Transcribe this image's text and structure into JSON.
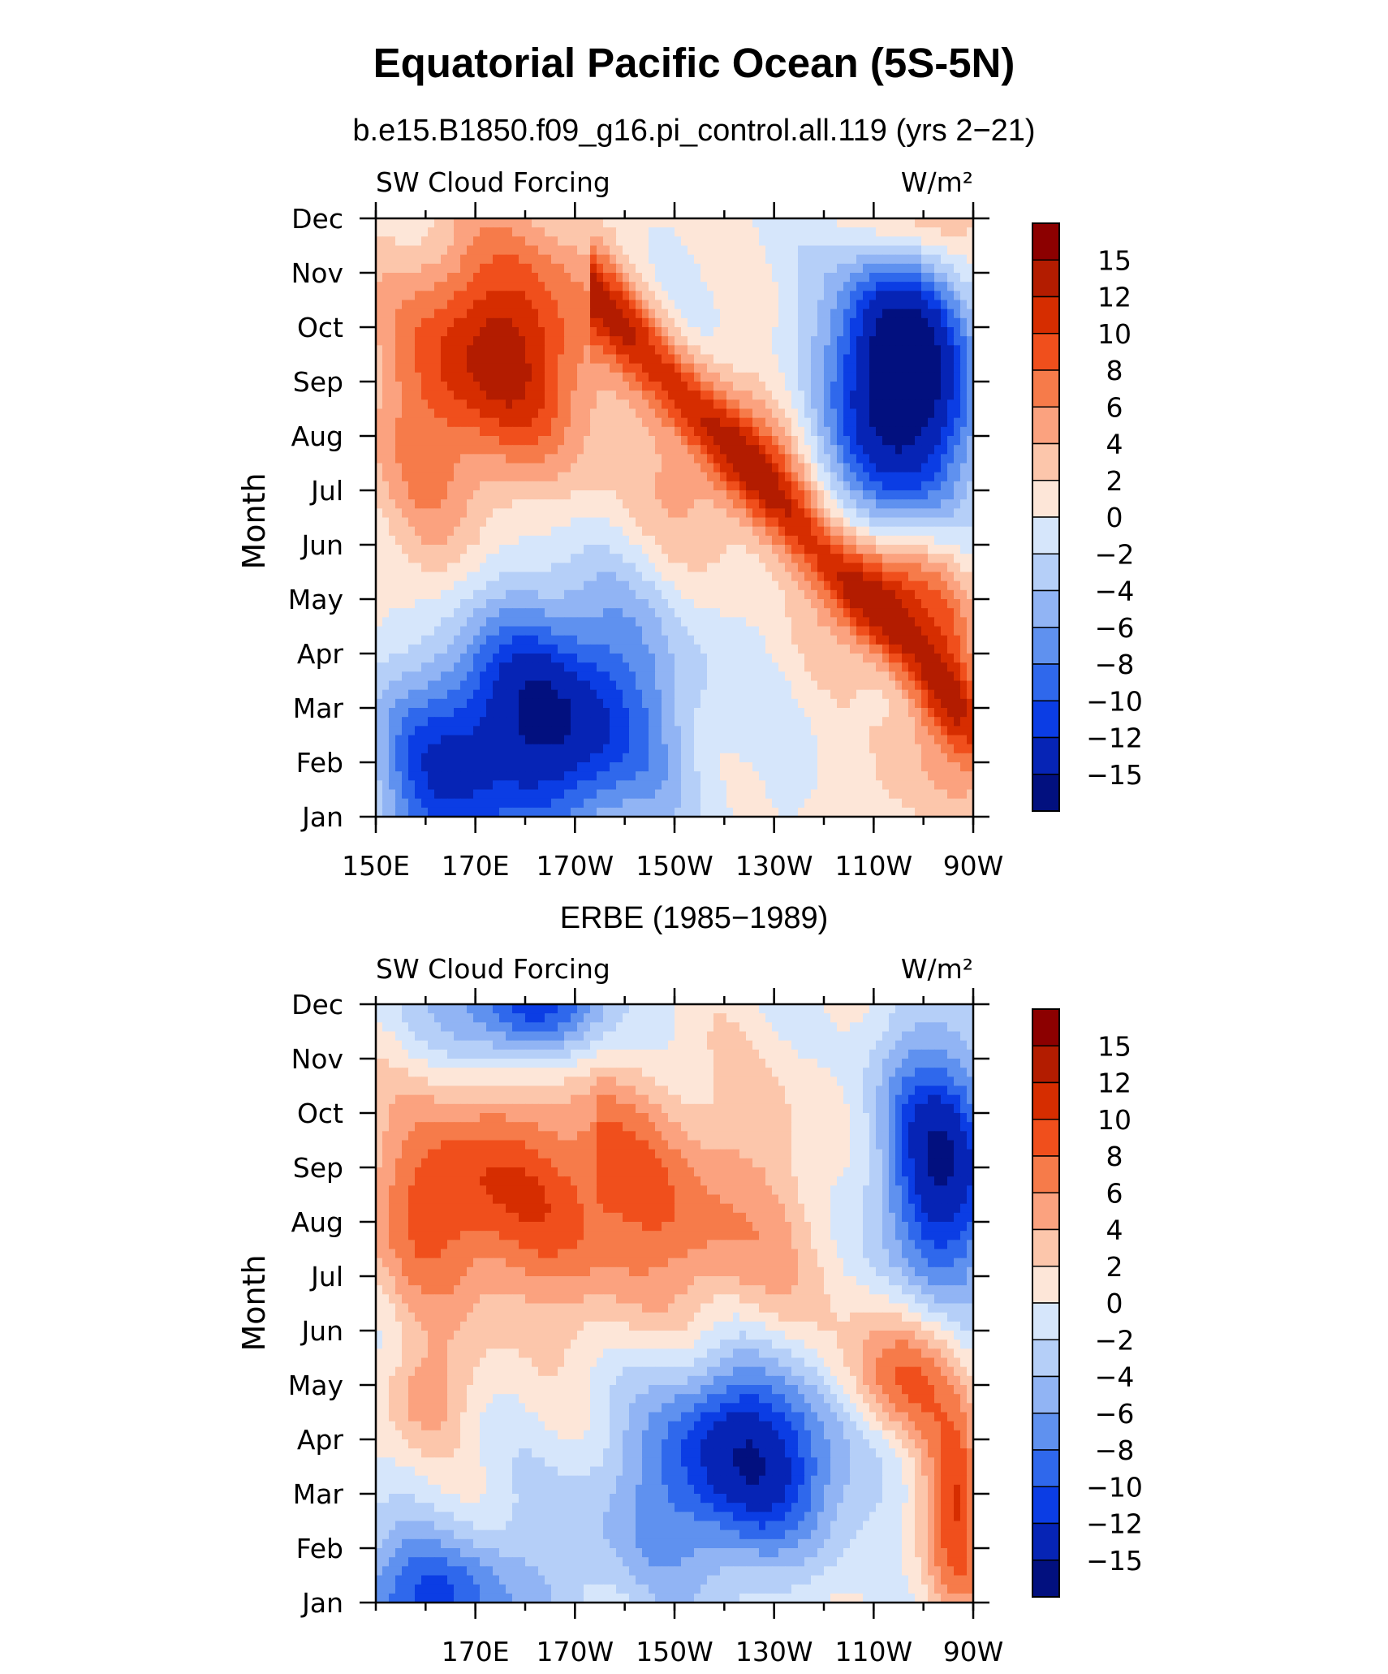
{
  "title": "Equatorial Pacific Ocean (5S-5N)",
  "chart_data": [
    {
      "type": "heatmap",
      "subtitle": "b.e15.B1850.f09_g16.pi_control.all.119 (yrs 2−21)",
      "left_label": "SW Cloud Forcing",
      "units": "W/m²",
      "ylabel": "Month",
      "months": [
        "Jan",
        "Feb",
        "Mar",
        "Apr",
        "May",
        "Jun",
        "Jul",
        "Aug",
        "Sep",
        "Oct",
        "Nov",
        "Dec"
      ],
      "x_tick_labels": [
        "150E",
        "170E",
        "170W",
        "150W",
        "130W",
        "110W",
        "90W"
      ],
      "x_tick_lon": [
        150,
        170,
        190,
        210,
        230,
        250,
        270
      ],
      "xlim_lon": [
        150,
        270
      ],
      "colorbar_levels": [
        "15",
        "12",
        "10",
        "8",
        "6",
        "4",
        "2",
        "0",
        "−2",
        "−4",
        "−6",
        "−8",
        "−10",
        "−12",
        "−15"
      ],
      "blobs": [
        {
          "lon": 177,
          "month": 9.6,
          "slon": 14,
          "smon": 1.6,
          "amp": 12
        },
        {
          "lon": 255,
          "month": 9.0,
          "slon": 10,
          "smon": 1.9,
          "amp": -20
        },
        {
          "lon": 253,
          "month": 5.2,
          "slon": 10,
          "smon": 0.9,
          "amp": 10
        },
        {
          "lon": 266,
          "month": 3.6,
          "slon": 5,
          "smon": 1.4,
          "amp": 5
        },
        {
          "lon": 186,
          "month": 2.8,
          "slon": 16,
          "smon": 1.6,
          "amp": -15
        },
        {
          "lon": 162,
          "month": 1.6,
          "slon": 10,
          "smon": 1.5,
          "amp": -8
        },
        {
          "lon": 222,
          "month": 7.4,
          "slon": 14,
          "smon": 1.2,
          "amp": 6
        },
        {
          "lon": 160,
          "month": 7.5,
          "slon": 10,
          "smon": 2.5,
          "amp": 4
        },
        {
          "lon": 255,
          "month": 1.2,
          "slon": 8,
          "smon": 1.5,
          "amp": 3
        },
        {
          "lon": 258,
          "month": 12.0,
          "slon": 10,
          "smon": 0.8,
          "amp": 8
        }
      ],
      "diag": {
        "lon0": 267,
        "m0": 3.0,
        "lon1": 205,
        "m1": 9.5,
        "amp": 8,
        "w": 0.6
      }
    },
    {
      "type": "heatmap",
      "subtitle": "ERBE (1985−1989)",
      "left_label": "SW Cloud Forcing",
      "units": "W/m²",
      "ylabel": "Month",
      "months": [
        "Jan",
        "Feb",
        "Mar",
        "Apr",
        "May",
        "Jun",
        "Jul",
        "Aug",
        "Sep",
        "Oct",
        "Nov",
        "Dec"
      ],
      "x_tick_labels": [
        "170E",
        "170W",
        "150W",
        "130W",
        "110W",
        "90W"
      ],
      "x_tick_lon": [
        170,
        190,
        210,
        230,
        250,
        270
      ],
      "xlim_lon": [
        150,
        270
      ],
      "colorbar_levels": [
        "15",
        "12",
        "10",
        "8",
        "6",
        "4",
        "2",
        "0",
        "−2",
        "−4",
        "−6",
        "−8",
        "−10",
        "−12",
        "−15"
      ],
      "blobs": [
        {
          "lon": 162,
          "month": 8.4,
          "slon": 10,
          "smon": 1.4,
          "amp": 8
        },
        {
          "lon": 185,
          "month": 8.6,
          "slon": 14,
          "smon": 1.6,
          "amp": 7
        },
        {
          "lon": 215,
          "month": 8.2,
          "slon": 20,
          "smon": 1.8,
          "amp": 5
        },
        {
          "lon": 160,
          "month": 4.8,
          "slon": 6,
          "smon": 0.7,
          "amp": 5
        },
        {
          "lon": 263,
          "month": 9.0,
          "slon": 9,
          "smon": 1.7,
          "amp": -15
        },
        {
          "lon": 225,
          "month": 3.8,
          "slon": 15,
          "smon": 1.3,
          "amp": -14
        },
        {
          "lon": 160,
          "month": 1.0,
          "slon": 14,
          "smon": 0.9,
          "amp": -10
        },
        {
          "lon": 180,
          "month": 12.0,
          "slon": 12,
          "smon": 0.8,
          "amp": -12
        },
        {
          "lon": 256,
          "month": 5.2,
          "slon": 9,
          "smon": 0.9,
          "amp": 8
        },
        {
          "lon": 267,
          "month": 2.6,
          "slon": 5,
          "smon": 1.3,
          "amp": 9
        },
        {
          "lon": 205,
          "month": 2.0,
          "slon": 22,
          "smon": 1.2,
          "amp": -3
        },
        {
          "lon": 240,
          "month": 1.3,
          "slon": 14,
          "smon": 1.0,
          "amp": 1
        }
      ],
      "diag": {
        "lon0": 260,
        "m0": 4.0,
        "lon1": 205,
        "m1": 8.5,
        "amp": 2,
        "w": 0.7
      }
    }
  ]
}
